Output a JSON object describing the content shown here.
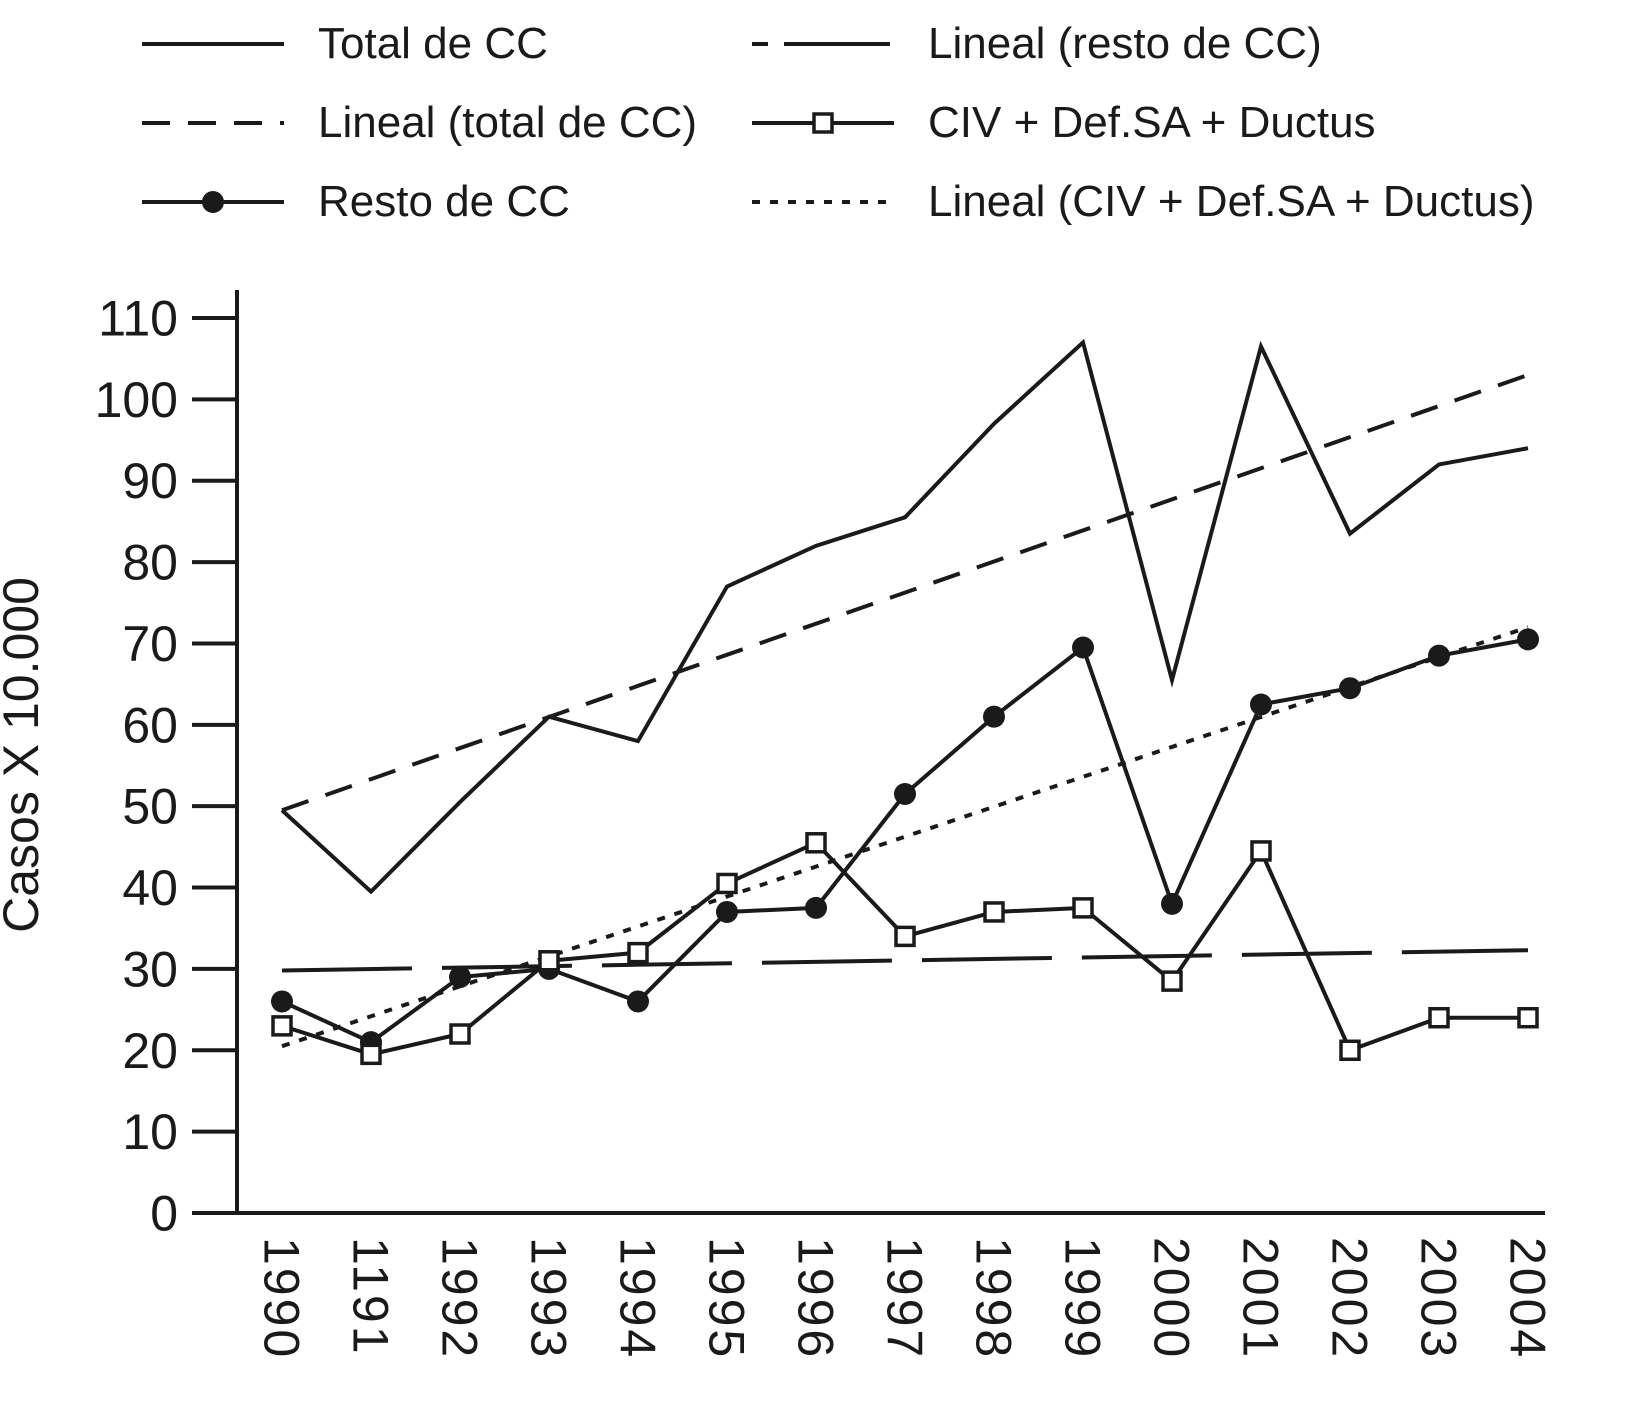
{
  "chart_data": {
    "type": "line",
    "title": "",
    "ylabel": "Casos X 10.000",
    "xlabel": "",
    "ylim": [
      0,
      110
    ],
    "ytick_step": 10,
    "grid": false,
    "legend_position": "top",
    "categories": [
      "1990",
      "1191",
      "1992",
      "1993",
      "1994",
      "1995",
      "1996",
      "1997",
      "1998",
      "1999",
      "2000",
      "2001",
      "2002",
      "2003",
      "2004"
    ],
    "series": [
      {
        "name": "Lineal (total de CC)",
        "line": "dashed",
        "marker": "none",
        "trend": [
          49.5,
          103
        ]
      },
      {
        "name": "Lineal (resto de CC)",
        "line": "longdash",
        "marker": "none",
        "legend_dash": "16 16 106",
        "trend": [
          29.8,
          32.3
        ]
      },
      {
        "name": "Lineal (CIV + Def.SA + Ductus)",
        "line": "dotted",
        "marker": "none",
        "trend": [
          20.5,
          72
        ]
      },
      {
        "name": "Total de CC",
        "line": "solid",
        "marker": "none",
        "values": [
          49.5,
          39.5,
          50.5,
          61,
          58,
          77,
          82,
          85.5,
          97,
          107,
          65.5,
          106.5,
          83.5,
          92,
          94
        ]
      },
      {
        "name": "Resto de CC",
        "line": "solid",
        "marker": "circle",
        "values": [
          26,
          21,
          29,
          30,
          26,
          37,
          37.5,
          51.5,
          61,
          69.5,
          38,
          62.5,
          64.5,
          68.5,
          70.5
        ]
      },
      {
        "name": "CIV + Def.SA + Ductus",
        "line": "solid",
        "marker": "square",
        "values": [
          23,
          19.5,
          22,
          31,
          32,
          40.5,
          45.5,
          34,
          37,
          37.5,
          28.5,
          44.5,
          20,
          24,
          24
        ]
      }
    ],
    "legend": {
      "columns": [
        [
          "Total de CC",
          "Lineal (total de CC)",
          "Resto de CC"
        ],
        [
          "Lineal (resto de CC)",
          "CIV + Def.SA + Ductus",
          "Lineal (CIV + Def.SA + Ductus)"
        ]
      ]
    },
    "colors": {
      "line": "#1a1a1a",
      "marker_fill": "#ffffff",
      "background": "#ffffff"
    }
  }
}
